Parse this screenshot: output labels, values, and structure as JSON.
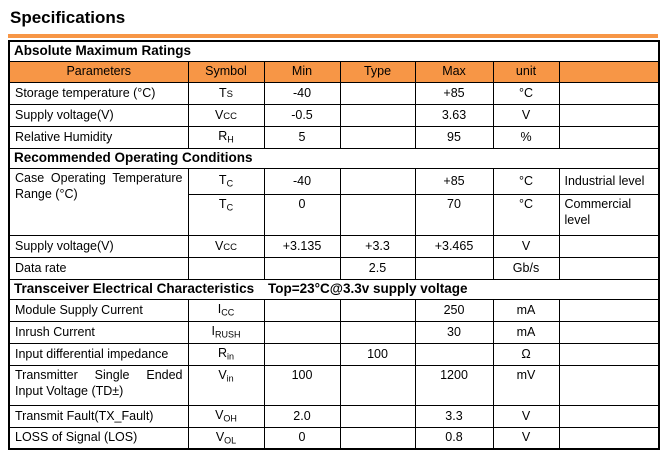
{
  "page": {
    "title": "Specifications"
  },
  "colors": {
    "header_fill": "#F79646",
    "top_strip": "#F79646",
    "border": "#000000",
    "text": "#000000"
  },
  "table": {
    "rows": [
      {
        "type": "section",
        "label": "Absolute Maximum Ratings"
      },
      {
        "type": "header",
        "cells": [
          "Parameters",
          "Symbol",
          "Min",
          "Type",
          "Max",
          "unit",
          ""
        ]
      },
      {
        "type": "data",
        "param": "Storage temperature (°C)",
        "symbol": {
          "base": "T",
          "sub": "S",
          "variant": "caps"
        },
        "min": "-40",
        "typ": "",
        "max": "+85",
        "unit": "°C",
        "note": ""
      },
      {
        "type": "data",
        "param": "Supply voltage(V)",
        "symbol": {
          "base": "V",
          "sub": "CC",
          "variant": "caps"
        },
        "min": "-0.5",
        "typ": "",
        "max": "3.63",
        "unit": "V",
        "note": ""
      },
      {
        "type": "data",
        "param": "Relative Humidity",
        "symbol": {
          "base": "R",
          "sub": "H",
          "variant": "sub"
        },
        "min": "5",
        "typ": "",
        "max": "95",
        "unit": "%",
        "note": ""
      },
      {
        "type": "section",
        "label": "Recommended Operating Conditions"
      },
      {
        "type": "data",
        "param": "Case Operating Temperature Range (°C)",
        "param_rowspan": 2,
        "symbol": {
          "base": "T",
          "sub": "C",
          "variant": "sub"
        },
        "min": "-40",
        "typ": "",
        "max": "+85",
        "unit": "°C",
        "note": "Industrial level"
      },
      {
        "type": "data",
        "param": null,
        "symbol": {
          "base": "T",
          "sub": "C",
          "variant": "sub"
        },
        "min": "0",
        "typ": "",
        "max": "70",
        "unit": "°C",
        "note": "Commercial level"
      },
      {
        "type": "data",
        "param": "Supply voltage(V)",
        "symbol": {
          "base": "V",
          "sub": "CC",
          "variant": "caps"
        },
        "min": "+3.135",
        "typ": "+3.3",
        "max": "+3.465",
        "unit": "V",
        "note": ""
      },
      {
        "type": "data",
        "param": "Data rate",
        "symbol": null,
        "min": "",
        "typ": "2.5",
        "max": "",
        "unit": "Gb/s",
        "note": ""
      },
      {
        "type": "section",
        "label": "Transceiver Electrical Characteristics",
        "label2": "Top=23°C@3.3v supply voltage"
      },
      {
        "type": "data",
        "param": "Module Supply Current",
        "symbol": {
          "base": "I",
          "sub": "CC",
          "variant": "sub"
        },
        "min": "",
        "typ": "",
        "max": "250",
        "unit": "mA",
        "note": ""
      },
      {
        "type": "data",
        "param": "Inrush Current",
        "symbol": {
          "base": "I",
          "sub": "RUSH",
          "variant": "sub"
        },
        "min": "",
        "typ": "",
        "max": "30",
        "unit": "mA",
        "note": ""
      },
      {
        "type": "data",
        "param": "Input differential impedance",
        "symbol": {
          "base": "R",
          "sub": "in",
          "variant": "sub"
        },
        "min": "",
        "typ": "100",
        "max": "",
        "unit": "Ω",
        "note": ""
      },
      {
        "type": "data",
        "param": "Transmitter Single Ended Input Voltage (TD±)",
        "symbol": {
          "base": "V",
          "sub": "in",
          "variant": "sub"
        },
        "min": "100",
        "typ": "",
        "max": "1200",
        "unit": "mV",
        "note": ""
      },
      {
        "type": "data",
        "param": "Transmit Fault(TX_Fault)",
        "symbol": {
          "base": "V",
          "sub": "OH",
          "variant": "sub"
        },
        "min": "2.0",
        "typ": "",
        "max": "3.3",
        "unit": "V",
        "note": ""
      },
      {
        "type": "data",
        "param": "LOSS of Signal (LOS)",
        "symbol": {
          "base": "V",
          "sub": "OL",
          "variant": "sub"
        },
        "min": "0",
        "typ": "",
        "max": "0.8",
        "unit": "V",
        "note": ""
      }
    ]
  }
}
